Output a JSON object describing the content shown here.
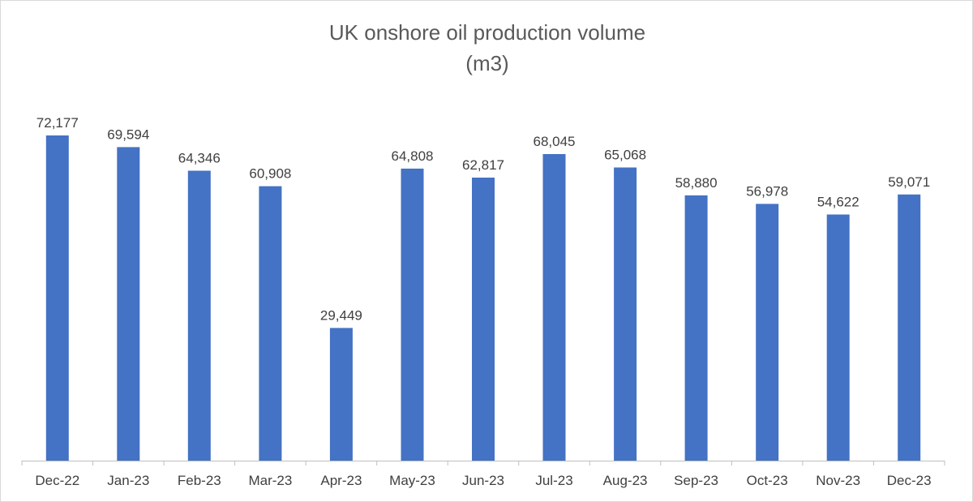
{
  "chart_data": {
    "type": "bar",
    "title": "UK onshore oil production volume",
    "subtitle": "(m3)",
    "categories": [
      "Dec-22",
      "Jan-23",
      "Feb-23",
      "Mar-23",
      "Apr-23",
      "May-23",
      "Jun-23",
      "Jul-23",
      "Aug-23",
      "Sep-23",
      "Oct-23",
      "Nov-23",
      "Dec-23"
    ],
    "values": [
      72177,
      69594,
      64346,
      60908,
      29449,
      64808,
      62817,
      68045,
      65068,
      58880,
      56978,
      54622,
      59071
    ],
    "value_labels": [
      "72,177",
      "69,594",
      "64,346",
      "60,908",
      "29,449",
      "64,808",
      "62,817",
      "68,045",
      "65,068",
      "58,880",
      "56,978",
      "54,622",
      "59,071"
    ],
    "ylim": [
      0,
      72177
    ],
    "xlabel": "",
    "ylabel": "",
    "grid": false,
    "legend": "none",
    "bar_color": "#4472c4",
    "axis_color": "#bfbfbf"
  }
}
